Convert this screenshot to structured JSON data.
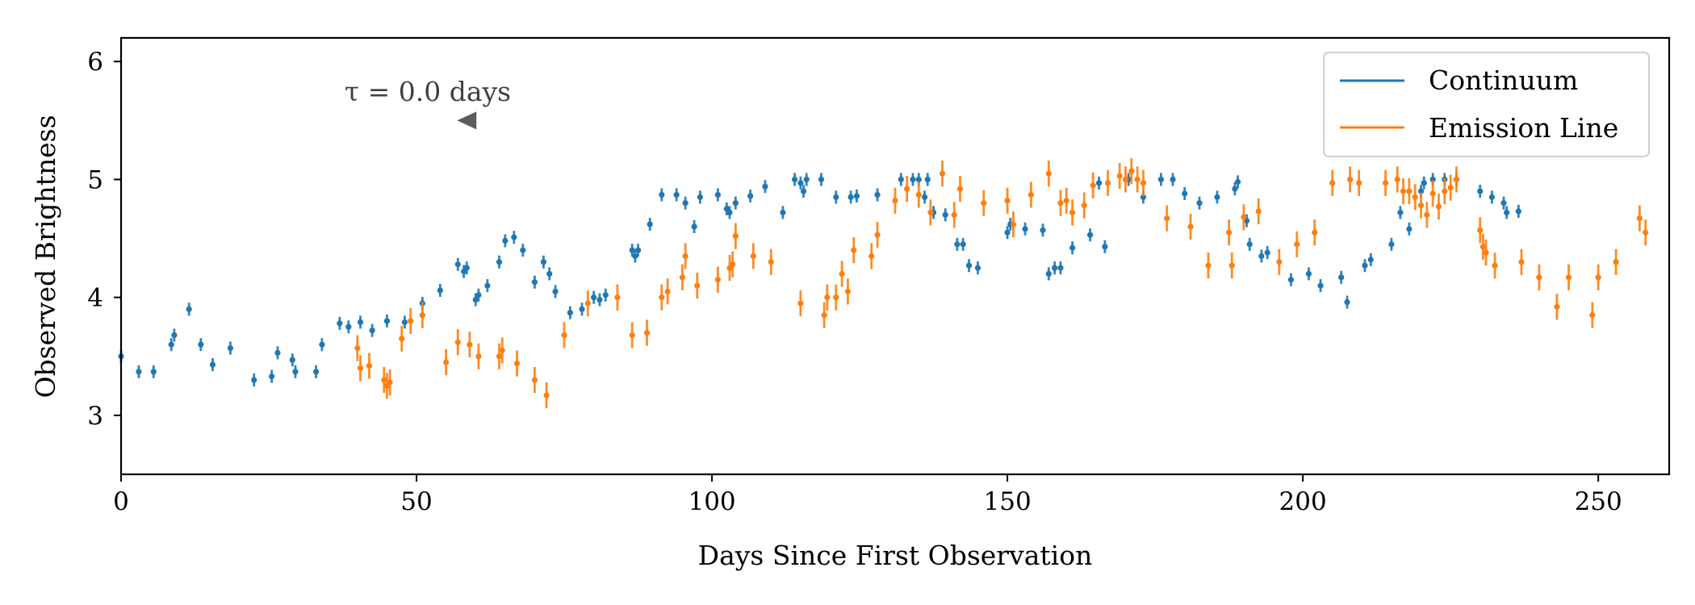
{
  "chart_data": {
    "type": "scatter",
    "xlabel": "Days Since First Observation",
    "ylabel": "Observed Brightness",
    "xlim": [
      0,
      262
    ],
    "ylim": [
      2.5,
      6.2
    ],
    "x_ticks": [
      0,
      50,
      100,
      150,
      200,
      250
    ],
    "x_tick_labels": [
      "0",
      "50",
      "100",
      "150",
      "200",
      "250"
    ],
    "y_ticks": [
      3,
      4,
      5,
      6
    ],
    "y_tick_labels": [
      "3",
      "4",
      "5",
      "6"
    ],
    "grid": false,
    "legend_position": "top-right",
    "annotation": {
      "text": "τ = 0.0 days",
      "marker_x": 58.5,
      "marker_y": 5.5,
      "marker": "left-triangle"
    },
    "series": [
      {
        "name": "Continuum",
        "color": "#1f77b4",
        "x": [
          0,
          3,
          5.5,
          8.5,
          9,
          11.5,
          13.5,
          15.5,
          18.5,
          22.5,
          25.5,
          26.5,
          29,
          29.5,
          33,
          34,
          37,
          38.5,
          40.5,
          42.5,
          45,
          48,
          51,
          54,
          57,
          58,
          58.5,
          60,
          60.5,
          62,
          64,
          65,
          66.5,
          68,
          70,
          71.5,
          72.5,
          73.5,
          76,
          78,
          80,
          81,
          82,
          86.5,
          87,
          87.5,
          89.5,
          91.5,
          94,
          95.5,
          97,
          98,
          101,
          102.5,
          103,
          104,
          106.5,
          109,
          112,
          114,
          115,
          115.5,
          116,
          118.5,
          121,
          123.5,
          124.5,
          128,
          132,
          134,
          135,
          136,
          136.5,
          137.5,
          139.5,
          141.5,
          142.5,
          143.5,
          145,
          150,
          150.5,
          153,
          156,
          157,
          158,
          159,
          161,
          164,
          165.5,
          166.5,
          170.5,
          173,
          176,
          178,
          180,
          182.5,
          185.5,
          188.5,
          189,
          190.5,
          191,
          193,
          194,
          198,
          201,
          203,
          206.5,
          207.5,
          210.5,
          211.5,
          215,
          216.5,
          218,
          220,
          220.5,
          222,
          224,
          226,
          230,
          232,
          234,
          234.5,
          236.5
        ],
        "y": [
          3.5,
          3.37,
          3.37,
          3.6,
          3.68,
          3.9,
          3.6,
          3.43,
          3.57,
          3.3,
          3.33,
          3.53,
          3.47,
          3.37,
          3.37,
          3.6,
          3.78,
          3.75,
          3.79,
          3.72,
          3.8,
          3.79,
          3.95,
          4.06,
          4.28,
          4.22,
          4.25,
          3.98,
          4.02,
          4.1,
          4.3,
          4.48,
          4.51,
          4.4,
          4.13,
          4.3,
          4.2,
          4.05,
          3.87,
          3.9,
          4.0,
          3.98,
          4.02,
          4.4,
          4.35,
          4.4,
          4.62,
          4.87,
          4.87,
          4.8,
          4.6,
          4.85,
          4.87,
          4.75,
          4.72,
          4.8,
          4.86,
          4.94,
          4.72,
          5.0,
          4.97,
          4.9,
          5.0,
          5.0,
          4.85,
          4.85,
          4.86,
          4.87,
          5.0,
          5.0,
          5.0,
          4.85,
          5.0,
          4.72,
          4.7,
          4.45,
          4.45,
          4.27,
          4.25,
          4.55,
          4.62,
          4.58,
          4.57,
          4.2,
          4.25,
          4.25,
          4.42,
          4.53,
          4.97,
          4.43,
          5.0,
          4.85,
          5.0,
          5.0,
          4.88,
          4.8,
          4.85,
          4.92,
          4.98,
          4.65,
          4.45,
          4.35,
          4.38,
          4.15,
          4.2,
          4.1,
          4.17,
          3.96,
          4.27,
          4.32,
          4.45,
          4.72,
          4.58,
          4.9,
          4.97,
          5.0,
          5.0,
          5.0,
          4.9,
          4.85,
          4.8,
          4.72,
          4.73
        ]
      },
      {
        "name": "Emission Line",
        "color": "#ff7f0e",
        "x": [
          40,
          40.5,
          42,
          44.5,
          45,
          45.5,
          47.5,
          49,
          51,
          55,
          57,
          59,
          60.5,
          64,
          64.5,
          67,
          70,
          72,
          75,
          79,
          84,
          86.5,
          89,
          91.5,
          92.5,
          95,
          95.5,
          97.5,
          101,
          103,
          103.5,
          104,
          107,
          110,
          115,
          119,
          119.5,
          121,
          122,
          123,
          124,
          127,
          128,
          131,
          133,
          135,
          137,
          139,
          141,
          142,
          146,
          150,
          151,
          154,
          157,
          159,
          160,
          161,
          163,
          164.5,
          167,
          169,
          170,
          171,
          172,
          173,
          177,
          181,
          184,
          187.5,
          188,
          190,
          192.5,
          196,
          199,
          202,
          205,
          208,
          209.5,
          214,
          216,
          217,
          218,
          219,
          220,
          221,
          222,
          223,
          224,
          225,
          226,
          230,
          230.5,
          231,
          232.5,
          237,
          240,
          243,
          245,
          249,
          250,
          253,
          257,
          258
        ],
        "y": [
          3.57,
          3.4,
          3.42,
          3.3,
          3.25,
          3.28,
          3.65,
          3.8,
          3.85,
          3.45,
          3.62,
          3.6,
          3.5,
          3.5,
          3.55,
          3.44,
          3.3,
          3.17,
          3.68,
          3.95,
          4.0,
          3.68,
          3.7,
          4.0,
          4.05,
          4.17,
          4.35,
          4.1,
          4.15,
          4.25,
          4.28,
          4.52,
          4.35,
          4.3,
          3.95,
          3.85,
          4.0,
          4.0,
          4.2,
          4.05,
          4.4,
          4.35,
          4.53,
          4.82,
          4.92,
          4.87,
          4.72,
          5.05,
          4.7,
          4.92,
          4.8,
          4.82,
          4.62,
          4.87,
          5.05,
          4.8,
          4.82,
          4.72,
          4.78,
          4.95,
          4.97,
          5.03,
          5.0,
          5.07,
          5.0,
          4.97,
          4.67,
          4.6,
          4.27,
          4.55,
          4.27,
          4.68,
          4.73,
          4.3,
          4.45,
          4.55,
          4.97,
          5.0,
          4.97,
          4.97,
          5.0,
          4.9,
          4.9,
          4.85,
          4.78,
          4.7,
          4.88,
          4.77,
          4.9,
          4.93,
          5.0,
          4.57,
          4.43,
          4.38,
          4.27,
          4.3,
          4.17,
          3.92,
          4.17,
          3.85,
          4.17,
          4.3,
          4.67,
          4.55
        ]
      }
    ]
  }
}
